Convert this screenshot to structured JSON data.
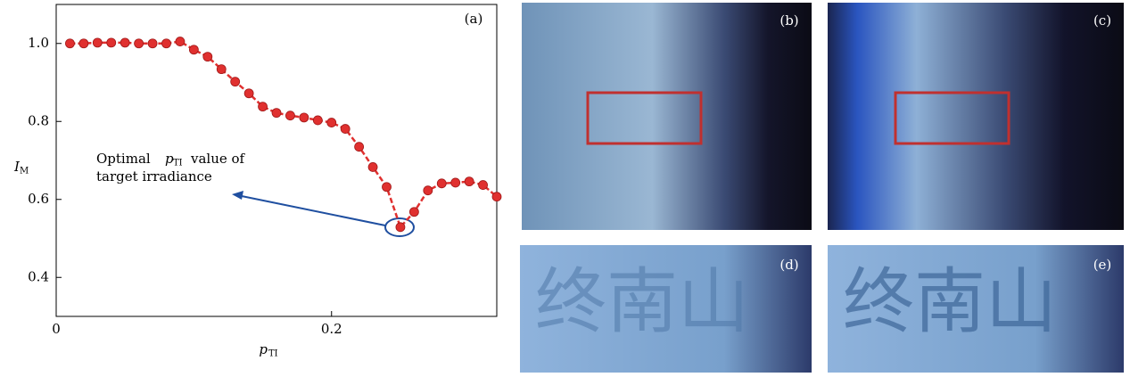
{
  "chart_data": {
    "type": "line",
    "panel_label": "(a)",
    "xlabel": {
      "symbol": "p",
      "sub": "TI"
    },
    "ylabel": {
      "symbol": "I",
      "sub": "M"
    },
    "x": [
      0.01,
      0.02,
      0.03,
      0.04,
      0.05,
      0.06,
      0.07,
      0.08,
      0.09,
      0.1,
      0.11,
      0.12,
      0.13,
      0.14,
      0.15,
      0.16,
      0.17,
      0.18,
      0.19,
      0.2,
      0.21,
      0.22,
      0.23,
      0.24,
      0.25,
      0.26,
      0.27,
      0.28,
      0.29,
      0.3,
      0.31,
      0.32
    ],
    "series": [
      {
        "color": "#e0302f",
        "values": [
          1.0,
          1.0,
          1.002,
          1.002,
          1.002,
          1.0,
          1.0,
          1.0,
          1.005,
          0.984,
          0.966,
          0.934,
          0.902,
          0.872,
          0.838,
          0.822,
          0.815,
          0.81,
          0.803,
          0.797,
          0.781,
          0.735,
          0.683,
          0.632,
          0.529,
          0.568,
          0.623,
          0.641,
          0.643,
          0.646,
          0.637,
          0.607
        ]
      }
    ],
    "xlim": [
      0,
      0.32
    ],
    "ylim": [
      0.3,
      1.1
    ],
    "xticks": [
      0,
      0.2
    ],
    "yticks": [
      0.4,
      0.6,
      0.8,
      {
        "value": 1,
        "label": "1.0"
      }
    ],
    "annotation": {
      "text1": "Optimal",
      "symbol": "p",
      "sub": "TI",
      "text2": "value of",
      "line2": "target irradiance"
    }
  },
  "images": [
    {
      "label": "(b)"
    },
    {
      "label": "(c)"
    },
    {
      "label": "(d)",
      "text": "终南山"
    },
    {
      "label": "(e)",
      "text": "终南山"
    }
  ]
}
